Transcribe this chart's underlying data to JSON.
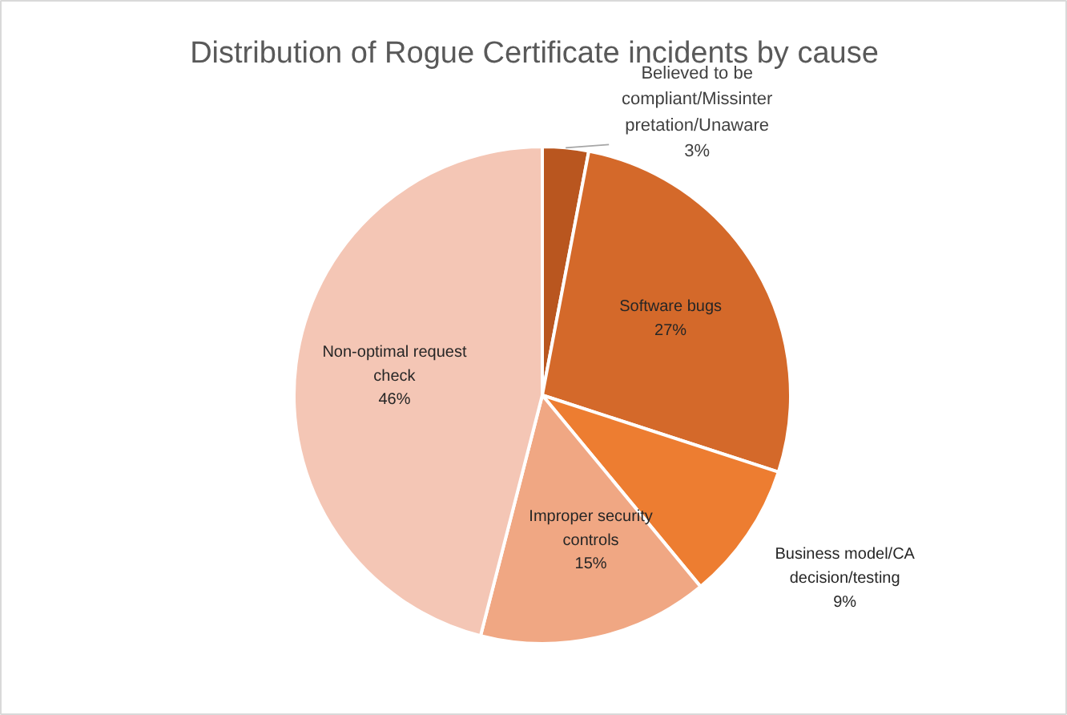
{
  "chart_data": {
    "type": "pie",
    "title": "Distribution of Rogue Certificate incidents by cause",
    "categories": [
      "Believed to be compliant/Missinterpretation/Unaware",
      "Software bugs",
      "Business model/CA decision/testing",
      "Improper security controls",
      "Non-optimal request check"
    ],
    "values": [
      3,
      27,
      9,
      15,
      46
    ],
    "value_labels": [
      "3%",
      "27%",
      "9%",
      "15%",
      "46%"
    ],
    "colors": [
      "#b9561f",
      "#d4692a",
      "#ed7d31",
      "#f0a783",
      "#f4c6b5"
    ]
  }
}
